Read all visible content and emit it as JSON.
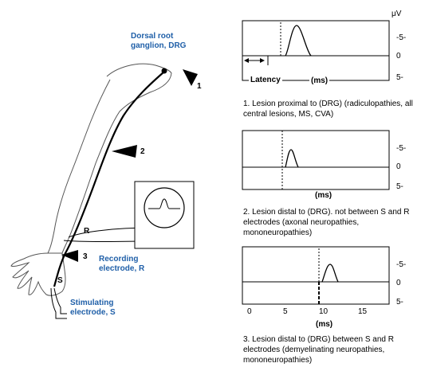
{
  "labels": {
    "drg": "Dorsal root\nganglion, DRG",
    "recording": "Recording\nelectrode, R",
    "stimulating": "Stimulating\nelectrode, S",
    "site1": "1",
    "site2": "2",
    "site3": "3",
    "r": "R",
    "s": "S"
  },
  "panels": {
    "unit": "μV",
    "ticks": [
      "-5-",
      "0",
      "5-"
    ],
    "latency": "Latency",
    "ms": "(ms)",
    "x_axis": [
      "0",
      "5",
      "10",
      "15"
    ]
  },
  "captions": {
    "c1": "1.  Lesion proximal to (DRG) (radiculopathies, all central lesions, MS, CVA)",
    "c2": "2.  Lesion distal to (DRG). not between S and R electrodes (axonal neuropathies, mononeuropathies)",
    "c3": "3.  Lesion distal to (DRG) between S and R electrodes (demyelinating neuropathies, mononeuropathies)"
  },
  "colors": {
    "accent": "#1f5fa8"
  }
}
